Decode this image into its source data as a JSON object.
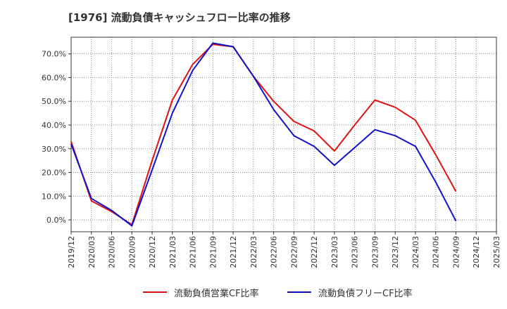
{
  "title": "[1976]  流動負債キャッシュフロー比率の推移",
  "chart_data": {
    "type": "line",
    "categories": [
      "2019/12",
      "2020/03",
      "2020/06",
      "2020/09",
      "2020/12",
      "2021/03",
      "2021/06",
      "2021/09",
      "2021/12",
      "2022/03",
      "2022/06",
      "2022/09",
      "2022/12",
      "2023/03",
      "2023/06",
      "2023/09",
      "2023/12",
      "2024/03",
      "2024/06",
      "2024/09",
      "2024/12",
      "2025/03"
    ],
    "series": [
      {
        "name": "流動負債営業CF比率",
        "color": "#dd1111",
        "values": [
          33.0,
          8.0,
          3.5,
          -2.0,
          25.0,
          50.5,
          65.5,
          74.0,
          73.0,
          60.5,
          50.0,
          41.5,
          37.5,
          29.0,
          40.0,
          50.5,
          47.5,
          42.0,
          27.5,
          12.0,
          null,
          null
        ]
      },
      {
        "name": "流動負債フリーCF比率",
        "color": "#1111cc",
        "values": [
          32.0,
          9.0,
          4.0,
          -2.5,
          21.0,
          45.0,
          63.0,
          74.5,
          73.0,
          60.5,
          46.5,
          35.5,
          31.0,
          23.0,
          30.5,
          38.0,
          35.5,
          31.0,
          16.0,
          -0.5,
          null,
          null
        ]
      }
    ],
    "ylim": [
      -5,
      77
    ],
    "yticks": [
      0,
      10,
      20,
      30,
      40,
      50,
      60,
      70
    ],
    "ytick_labels": [
      "0.0%",
      "10.0%",
      "20.0%",
      "30.0%",
      "40.0%",
      "50.0%",
      "60.0%",
      "70.0%"
    ],
    "grid": true,
    "legend_position": "bottom"
  }
}
